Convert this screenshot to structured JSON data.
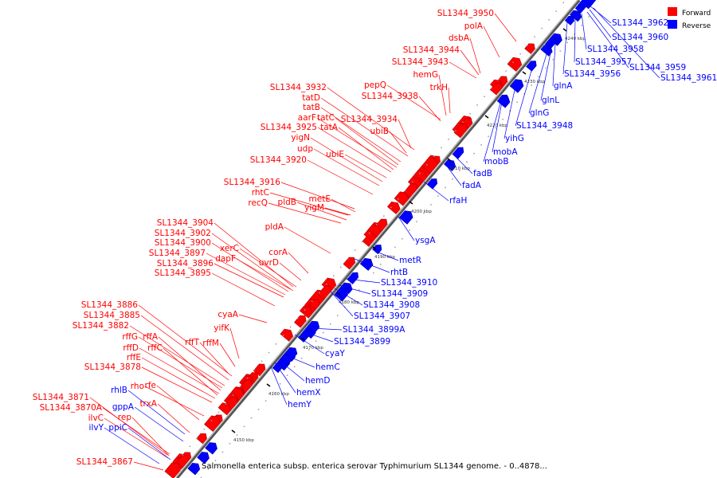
{
  "caption": "Salmonella enterica subsp. enterica serovar Typhimurium SL1344 genome. - 0..4878...",
  "legend": [
    {
      "label": "Forward",
      "color": "#ff0000"
    },
    {
      "label": "Reverse",
      "color": "#0000ff"
    }
  ],
  "colors": {
    "forward": "#ff0000",
    "reverse": "#0000ff",
    "backbone": "#888888"
  },
  "ticks": [
    "4150 kbp",
    "4160 kbp",
    "4170 kbp",
    "4180 kbp",
    "4190 kbp",
    "4200 kbp",
    "4210 kbp",
    "4220 kbp",
    "4230 kbp",
    "4240 kbp"
  ],
  "forward_genes": [
    "SL1344_3950",
    "polA",
    "dsbA",
    "SL1344_3944",
    "SL1344_3943",
    "hemG",
    "trkH",
    "pepQ",
    "SL1344_3938",
    "SL1344_3932",
    "tatD",
    "tatB",
    "aarF",
    "tatC",
    "SL1344_3925",
    "tatA",
    "SL1344_3934",
    "ubiB",
    "yigN",
    "udp",
    "ubiE",
    "SL1344_3920",
    "SL1344_3916",
    "rhtC",
    "recQ",
    "pldB",
    "metE",
    "yigM",
    "pldA",
    "SL1344_3904",
    "SL1344_3902",
    "SL1344_3900",
    "SL1344_3897",
    "SL1344_3896",
    "SL1344_3895",
    "xerC",
    "dapF",
    "corA",
    "uvrD",
    "cyaA",
    "yifK",
    "rffT",
    "rffM",
    "SL1344_3886",
    "SL1344_3885",
    "SL1344_3882",
    "rffG",
    "rffA",
    "rffD",
    "rffC",
    "rffE",
    "SL1344_3878",
    "rho",
    "rfe",
    "trxA",
    "SL1344_3871",
    "SL1344_3870A",
    "ilvC",
    "rep",
    "SL1344_3867"
  ],
  "reverse_genes_left": [
    "rhlB",
    "gppA",
    "ilvY",
    "ppiC"
  ],
  "reverse_genes": [
    "SL1344_3962",
    "SL1344_3960",
    "SL1344_3958",
    "SL1344_3957",
    "SL1344_3959",
    "SL1344_3961",
    "SL1344_3956",
    "glnA",
    "glnL",
    "glnG",
    "SL1344_3948",
    "yihG",
    "mobA",
    "mobB",
    "fadB",
    "fadA",
    "rfaH",
    "ysgA",
    "metR",
    "rhtB",
    "SL1344_3910",
    "SL1344_3909",
    "SL1344_3908",
    "SL1344_3907",
    "SL1344_3899A",
    "SL1344_3899",
    "cyaY",
    "hemC",
    "hemD",
    "hemX",
    "hemY"
  ]
}
